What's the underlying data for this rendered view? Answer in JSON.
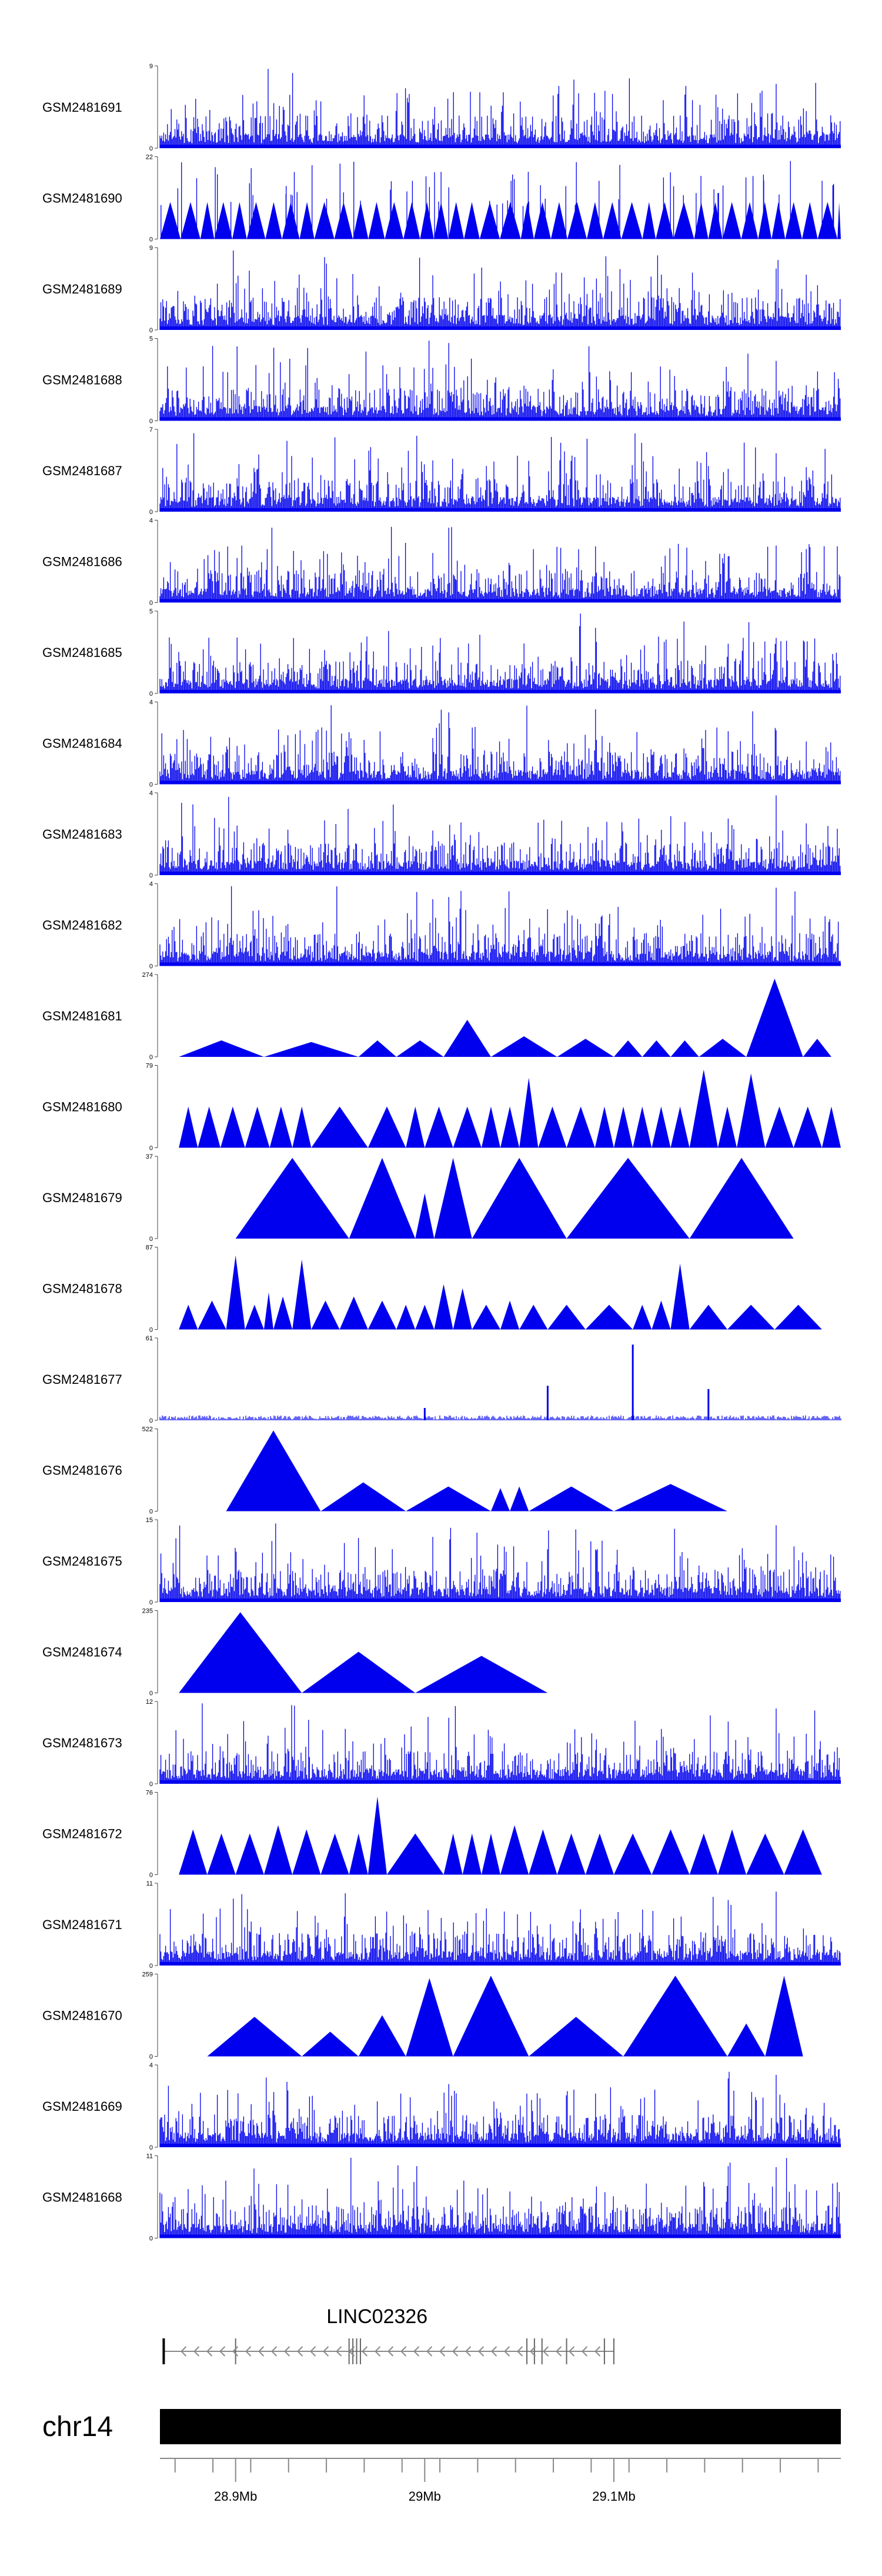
{
  "chart_data": {
    "type": "area",
    "title": "",
    "track_color": "#0000ee",
    "x_range_mb": [
      28.86,
      29.22
    ],
    "tracks": [
      {
        "name": "GSM2481691",
        "ymax": 9,
        "pattern": "dense",
        "seed": 11
      },
      {
        "name": "GSM2481690",
        "ymax": 22,
        "pattern": "spikes",
        "seed": 12
      },
      {
        "name": "GSM2481689",
        "ymax": 9,
        "pattern": "dense",
        "seed": 13
      },
      {
        "name": "GSM2481688",
        "ymax": 5,
        "pattern": "dense",
        "seed": 14
      },
      {
        "name": "GSM2481687",
        "ymax": 7,
        "pattern": "dense",
        "seed": 15
      },
      {
        "name": "GSM2481686",
        "ymax": 4,
        "pattern": "dense",
        "seed": 16
      },
      {
        "name": "GSM2481685",
        "ymax": 5,
        "pattern": "dense",
        "seed": 17
      },
      {
        "name": "GSM2481684",
        "ymax": 4,
        "pattern": "dense",
        "seed": 18
      },
      {
        "name": "GSM2481683",
        "ymax": 4,
        "pattern": "dense",
        "seed": 19
      },
      {
        "name": "GSM2481682",
        "ymax": 4,
        "pattern": "dense",
        "seed": 20
      },
      {
        "name": "GSM2481681",
        "ymax": 274,
        "pattern": "sparse",
        "peaks": [
          [
            28.87,
            28.915,
            0.2
          ],
          [
            28.915,
            28.965,
            0.18
          ],
          [
            28.965,
            28.985,
            0.2
          ],
          [
            28.985,
            29.01,
            0.2
          ],
          [
            29.01,
            29.035,
            0.45
          ],
          [
            29.035,
            29.07,
            0.25
          ],
          [
            29.07,
            29.1,
            0.22
          ],
          [
            29.1,
            29.115,
            0.2
          ],
          [
            29.115,
            29.13,
            0.2
          ],
          [
            29.13,
            29.145,
            0.2
          ],
          [
            29.145,
            29.17,
            0.22
          ],
          [
            29.17,
            29.2,
            0.95
          ],
          [
            29.2,
            29.215,
            0.22
          ]
        ]
      },
      {
        "name": "GSM2481680",
        "ymax": 79,
        "pattern": "sparse",
        "peaks": [
          [
            28.87,
            28.88,
            0.5
          ],
          [
            28.88,
            28.892,
            0.5
          ],
          [
            28.892,
            28.905,
            0.5
          ],
          [
            28.905,
            28.918,
            0.5
          ],
          [
            28.918,
            28.93,
            0.5
          ],
          [
            28.93,
            28.94,
            0.5
          ],
          [
            28.94,
            28.97,
            0.5
          ],
          [
            28.97,
            28.99,
            0.5
          ],
          [
            28.99,
            29.0,
            0.5
          ],
          [
            29.0,
            29.015,
            0.5
          ],
          [
            29.015,
            29.03,
            0.5
          ],
          [
            29.03,
            29.04,
            0.5
          ],
          [
            29.04,
            29.05,
            0.5
          ],
          [
            29.05,
            29.06,
            0.85
          ],
          [
            29.06,
            29.075,
            0.5
          ],
          [
            29.075,
            29.09,
            0.5
          ],
          [
            29.09,
            29.1,
            0.5
          ],
          [
            29.1,
            29.11,
            0.5
          ],
          [
            29.11,
            29.12,
            0.5
          ],
          [
            29.12,
            29.13,
            0.5
          ],
          [
            29.13,
            29.14,
            0.5
          ],
          [
            29.14,
            29.155,
            0.95
          ],
          [
            29.155,
            29.165,
            0.5
          ],
          [
            29.165,
            29.18,
            0.9
          ],
          [
            29.18,
            29.195,
            0.5
          ],
          [
            29.195,
            29.21,
            0.5
          ],
          [
            29.21,
            29.22,
            0.5
          ]
        ]
      },
      {
        "name": "GSM2481679",
        "ymax": 37,
        "pattern": "sparse",
        "peaks": [
          [
            28.9,
            28.96,
            0.98
          ],
          [
            28.96,
            28.995,
            0.98
          ],
          [
            28.995,
            29.005,
            0.55
          ],
          [
            29.005,
            29.025,
            0.98
          ],
          [
            29.025,
            29.075,
            0.98
          ],
          [
            29.075,
            29.14,
            0.98
          ],
          [
            29.14,
            29.195,
            0.98
          ]
        ]
      },
      {
        "name": "GSM2481678",
        "ymax": 87,
        "pattern": "sparse",
        "peaks": [
          [
            28.87,
            28.88,
            0.3
          ],
          [
            28.88,
            28.895,
            0.35
          ],
          [
            28.895,
            28.905,
            0.9
          ],
          [
            28.905,
            28.915,
            0.3
          ],
          [
            28.915,
            28.92,
            0.45
          ],
          [
            28.92,
            28.93,
            0.4
          ],
          [
            28.93,
            28.94,
            0.85
          ],
          [
            28.94,
            28.955,
            0.35
          ],
          [
            28.955,
            28.97,
            0.4
          ],
          [
            28.97,
            28.985,
            0.35
          ],
          [
            28.985,
            28.995,
            0.3
          ],
          [
            28.995,
            29.005,
            0.3
          ],
          [
            29.005,
            29.015,
            0.55
          ],
          [
            29.015,
            29.025,
            0.5
          ],
          [
            29.025,
            29.04,
            0.3
          ],
          [
            29.04,
            29.05,
            0.35
          ],
          [
            29.05,
            29.065,
            0.3
          ],
          [
            29.065,
            29.085,
            0.3
          ],
          [
            29.085,
            29.11,
            0.3
          ],
          [
            29.11,
            29.12,
            0.3
          ],
          [
            29.12,
            29.13,
            0.35
          ],
          [
            29.13,
            29.14,
            0.8
          ],
          [
            29.14,
            29.16,
            0.3
          ],
          [
            29.16,
            29.185,
            0.3
          ],
          [
            29.185,
            29.21,
            0.3
          ]
        ]
      },
      {
        "name": "GSM2481677",
        "ymax": 61,
        "pattern": "low",
        "peaks": [
          [
            29.0,
            0.15
          ],
          [
            29.065,
            0.42
          ],
          [
            29.11,
            0.92
          ],
          [
            29.15,
            0.38
          ]
        ]
      },
      {
        "name": "GSM2481676",
        "ymax": 522,
        "pattern": "sparse",
        "peaks": [
          [
            28.895,
            28.945,
            0.98
          ],
          [
            28.945,
            28.99,
            0.35
          ],
          [
            28.99,
            29.035,
            0.3
          ],
          [
            29.035,
            29.045,
            0.28
          ],
          [
            29.045,
            29.055,
            0.3
          ],
          [
            29.055,
            29.1,
            0.3
          ],
          [
            29.1,
            29.16,
            0.33
          ]
        ]
      },
      {
        "name": "GSM2481675",
        "ymax": 15,
        "pattern": "dense",
        "seed": 21
      },
      {
        "name": "GSM2481674",
        "ymax": 235,
        "pattern": "sparse",
        "peaks": [
          [
            28.87,
            28.935,
            0.98
          ],
          [
            28.935,
            28.995,
            0.5
          ],
          [
            28.995,
            29.065,
            0.45
          ]
        ]
      },
      {
        "name": "GSM2481673",
        "ymax": 12,
        "pattern": "dense",
        "seed": 22
      },
      {
        "name": "GSM2481672",
        "ymax": 76,
        "pattern": "sparse",
        "peaks": [
          [
            28.87,
            28.885,
            0.55
          ],
          [
            28.885,
            28.9,
            0.5
          ],
          [
            28.9,
            28.915,
            0.5
          ],
          [
            28.915,
            28.93,
            0.6
          ],
          [
            28.93,
            28.945,
            0.55
          ],
          [
            28.945,
            28.96,
            0.5
          ],
          [
            28.96,
            28.97,
            0.5
          ],
          [
            28.97,
            28.98,
            0.95
          ],
          [
            28.98,
            29.01,
            0.5
          ],
          [
            29.01,
            29.02,
            0.5
          ],
          [
            29.02,
            29.03,
            0.5
          ],
          [
            29.03,
            29.04,
            0.5
          ],
          [
            29.04,
            29.055,
            0.6
          ],
          [
            29.055,
            29.07,
            0.55
          ],
          [
            29.07,
            29.085,
            0.5
          ],
          [
            29.085,
            29.1,
            0.5
          ],
          [
            29.1,
            29.12,
            0.5
          ],
          [
            29.12,
            29.14,
            0.55
          ],
          [
            29.14,
            29.155,
            0.5
          ],
          [
            29.155,
            29.17,
            0.55
          ],
          [
            29.17,
            29.19,
            0.5
          ],
          [
            29.19,
            29.21,
            0.55
          ]
        ]
      },
      {
        "name": "GSM2481671",
        "ymax": 11,
        "pattern": "dense",
        "seed": 23
      },
      {
        "name": "GSM2481670",
        "ymax": 259,
        "pattern": "sparse",
        "peaks": [
          [
            28.885,
            28.935,
            0.48
          ],
          [
            28.935,
            28.965,
            0.3
          ],
          [
            28.965,
            28.99,
            0.5
          ],
          [
            28.99,
            29.015,
            0.95
          ],
          [
            29.015,
            29.055,
            0.98
          ],
          [
            29.055,
            29.105,
            0.48
          ],
          [
            29.105,
            29.16,
            0.98
          ],
          [
            29.16,
            29.18,
            0.4
          ],
          [
            29.18,
            29.2,
            0.98
          ]
        ]
      },
      {
        "name": "GSM2481669",
        "ymax": 4,
        "pattern": "dense",
        "seed": 24
      },
      {
        "name": "GSM2481668",
        "ymax": 11,
        "pattern": "dense",
        "seed": 25
      }
    ],
    "gene": {
      "label": "LINC02326",
      "start_mb": 28.862,
      "end_mb": 29.1,
      "strand": "-"
    },
    "chromosome": {
      "label": "chr14"
    },
    "x_ticks": [
      {
        "value": 28.9,
        "label": "28.9Mb"
      },
      {
        "value": 29.0,
        "label": "29Mb"
      },
      {
        "value": 29.1,
        "label": "29.1Mb"
      }
    ],
    "minor_ticks": [
      28.868,
      28.888,
      28.908,
      28.928,
      28.948,
      28.968,
      28.988,
      29.008,
      29.028,
      29.048,
      29.068,
      29.088,
      29.108,
      29.128,
      29.148,
      29.168,
      29.188,
      29.208
    ]
  }
}
